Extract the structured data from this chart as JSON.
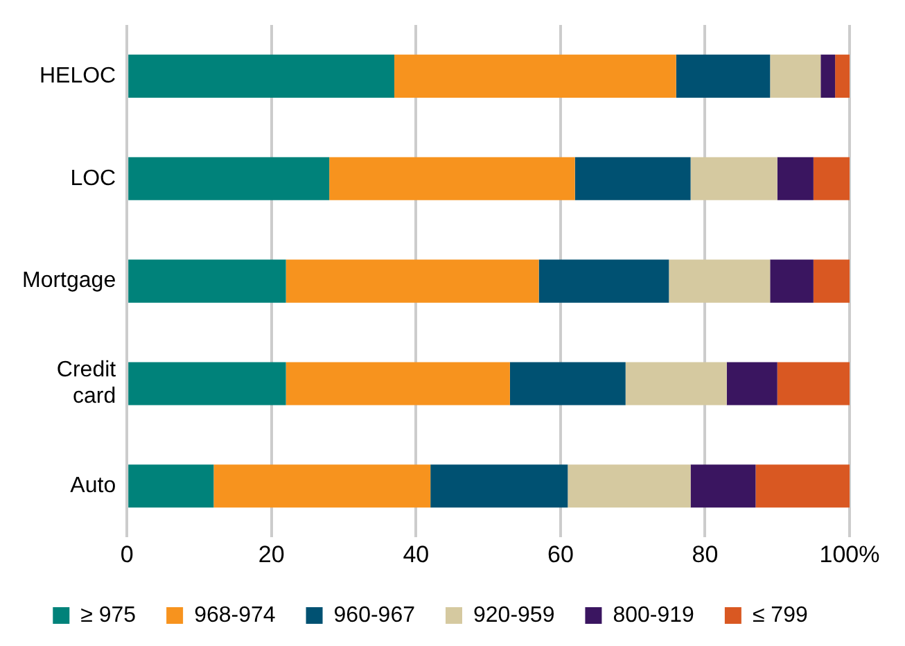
{
  "chart_data": {
    "type": "bar",
    "orientation": "horizontal",
    "stacked": true,
    "categories": [
      "HELOC",
      "LOC",
      "Mortgage",
      "Credit\ncard",
      "Auto"
    ],
    "series": [
      {
        "name": "≥ 975",
        "color": "#00827a",
        "values": [
          37,
          28,
          22,
          22,
          12
        ]
      },
      {
        "name": "968-974",
        "color": "#f7931e",
        "values": [
          39,
          34,
          35,
          31,
          30
        ]
      },
      {
        "name": "960-967",
        "color": "#005172",
        "values": [
          13,
          16,
          18,
          16,
          19
        ]
      },
      {
        "name": "920-959",
        "color": "#d5c9a0",
        "values": [
          7,
          12,
          14,
          14,
          17
        ]
      },
      {
        "name": "800-919",
        "color": "#3a1560",
        "values": [
          2,
          5,
          6,
          7,
          9
        ]
      },
      {
        "name": "≤ 799",
        "color": "#d95822",
        "values": [
          2,
          5,
          5,
          10,
          13
        ]
      }
    ],
    "xlim": [
      0,
      100
    ],
    "xticks": [
      0,
      20,
      40,
      60,
      80,
      {
        "value": 100,
        "label": "100%"
      }
    ],
    "grid": "x",
    "legend": "bottom"
  }
}
